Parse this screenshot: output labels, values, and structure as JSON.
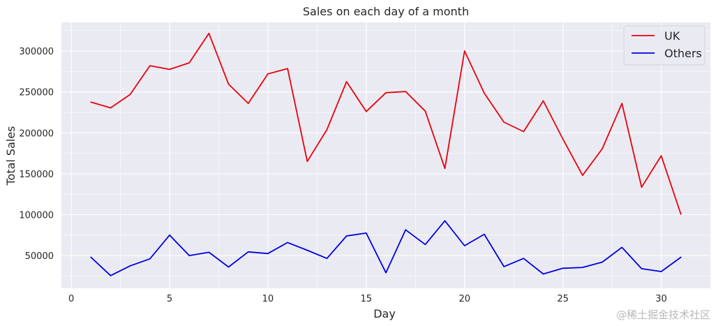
{
  "chart_data": {
    "type": "line",
    "title": "Sales on each day of a month",
    "xlabel": "Day",
    "ylabel": "Total Sales",
    "xlim": [
      -0.5,
      32.5
    ],
    "ylim": [
      10000,
      335000
    ],
    "xticks": [
      0,
      5,
      10,
      15,
      20,
      25,
      30
    ],
    "yticks": [
      50000,
      100000,
      150000,
      200000,
      250000,
      300000
    ],
    "grid": true,
    "legend_position": "top-right",
    "x": [
      1,
      2,
      3,
      4,
      5,
      6,
      7,
      8,
      9,
      10,
      11,
      12,
      13,
      14,
      15,
      16,
      17,
      18,
      19,
      20,
      21,
      22,
      23,
      24,
      25,
      26,
      27,
      28,
      29,
      30,
      31
    ],
    "series": [
      {
        "name": "UK",
        "color": "#e8000b",
        "values": [
          237500,
          230500,
          247000,
          282000,
          277500,
          285500,
          321500,
          259500,
          236000,
          272000,
          278500,
          165000,
          204000,
          262500,
          226000,
          249000,
          250500,
          226500,
          156500,
          300000,
          248500,
          213000,
          201500,
          239000,
          192500,
          148000,
          180500,
          236000,
          133500,
          172000,
          100500
        ]
      },
      {
        "name": "Others",
        "color": "#0000e0",
        "values": [
          48000,
          25500,
          37500,
          46000,
          75000,
          50000,
          54000,
          36000,
          54500,
          52500,
          66000,
          56500,
          46500,
          74000,
          77500,
          29000,
          81500,
          63500,
          92500,
          62000,
          76000,
          36500,
          46500,
          27500,
          34500,
          35500,
          42000,
          60000,
          34000,
          30500,
          48000
        ]
      }
    ],
    "watermark": "@稀土掘金技术社区"
  }
}
